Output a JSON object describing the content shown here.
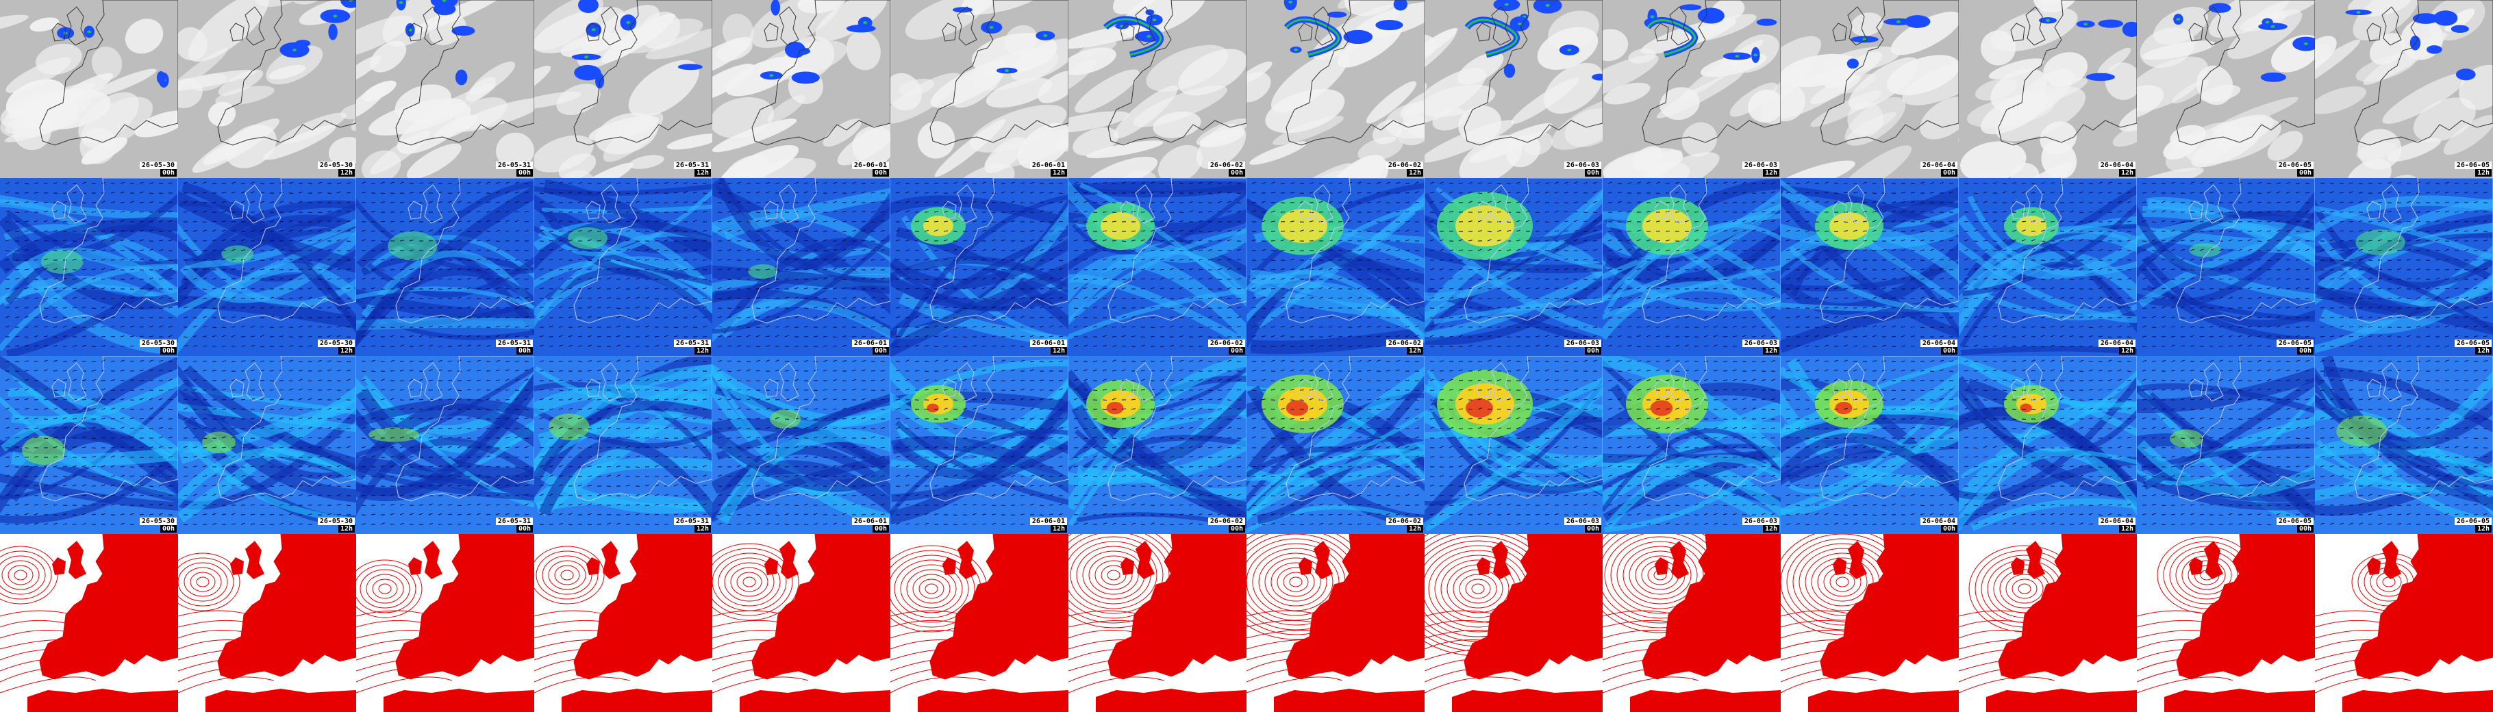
{
  "columns": [
    {
      "date": "26-05-30",
      "hour": "00h"
    },
    {
      "date": "26-05-30",
      "hour": "12h"
    },
    {
      "date": "26-05-31",
      "hour": "00h"
    },
    {
      "date": "26-05-31",
      "hour": "12h"
    },
    {
      "date": "26-06-01",
      "hour": "00h"
    },
    {
      "date": "26-06-01",
      "hour": "12h"
    },
    {
      "date": "26-06-02",
      "hour": "00h"
    },
    {
      "date": "26-06-02",
      "hour": "12h"
    },
    {
      "date": "26-06-03",
      "hour": "00h"
    },
    {
      "date": "26-06-03",
      "hour": "12h"
    },
    {
      "date": "26-06-04",
      "hour": "00h"
    },
    {
      "date": "26-06-04",
      "hour": "12h"
    },
    {
      "date": "26-06-05",
      "hour": "00h"
    },
    {
      "date": "26-06-05",
      "hour": "12h"
    }
  ],
  "rows": [
    {
      "id": "clouds",
      "colors": {
        "bg": "#bdbdbd",
        "light": "#f2f2f2",
        "blue": "#1a4cff",
        "green": "#22c05a"
      }
    },
    {
      "id": "wind-low",
      "colors": {
        "bg": "#1f5fe0",
        "deep": "#0f2fb0",
        "cyan": "#2fb0ff",
        "green": "#49e08a",
        "yellow": "#f1e23a"
      }
    },
    {
      "id": "wind-high",
      "colors": {
        "bg": "#2d7cf0",
        "deep": "#0f2fb0",
        "cyan": "#25c0ff",
        "green": "#7be84a",
        "yellow": "#ffd21e",
        "red": "#e53b1e"
      }
    },
    {
      "id": "pressure",
      "colors": {
        "bg": "#ffffff",
        "land": "#e60000",
        "isobar": "#e60000"
      }
    }
  ]
}
